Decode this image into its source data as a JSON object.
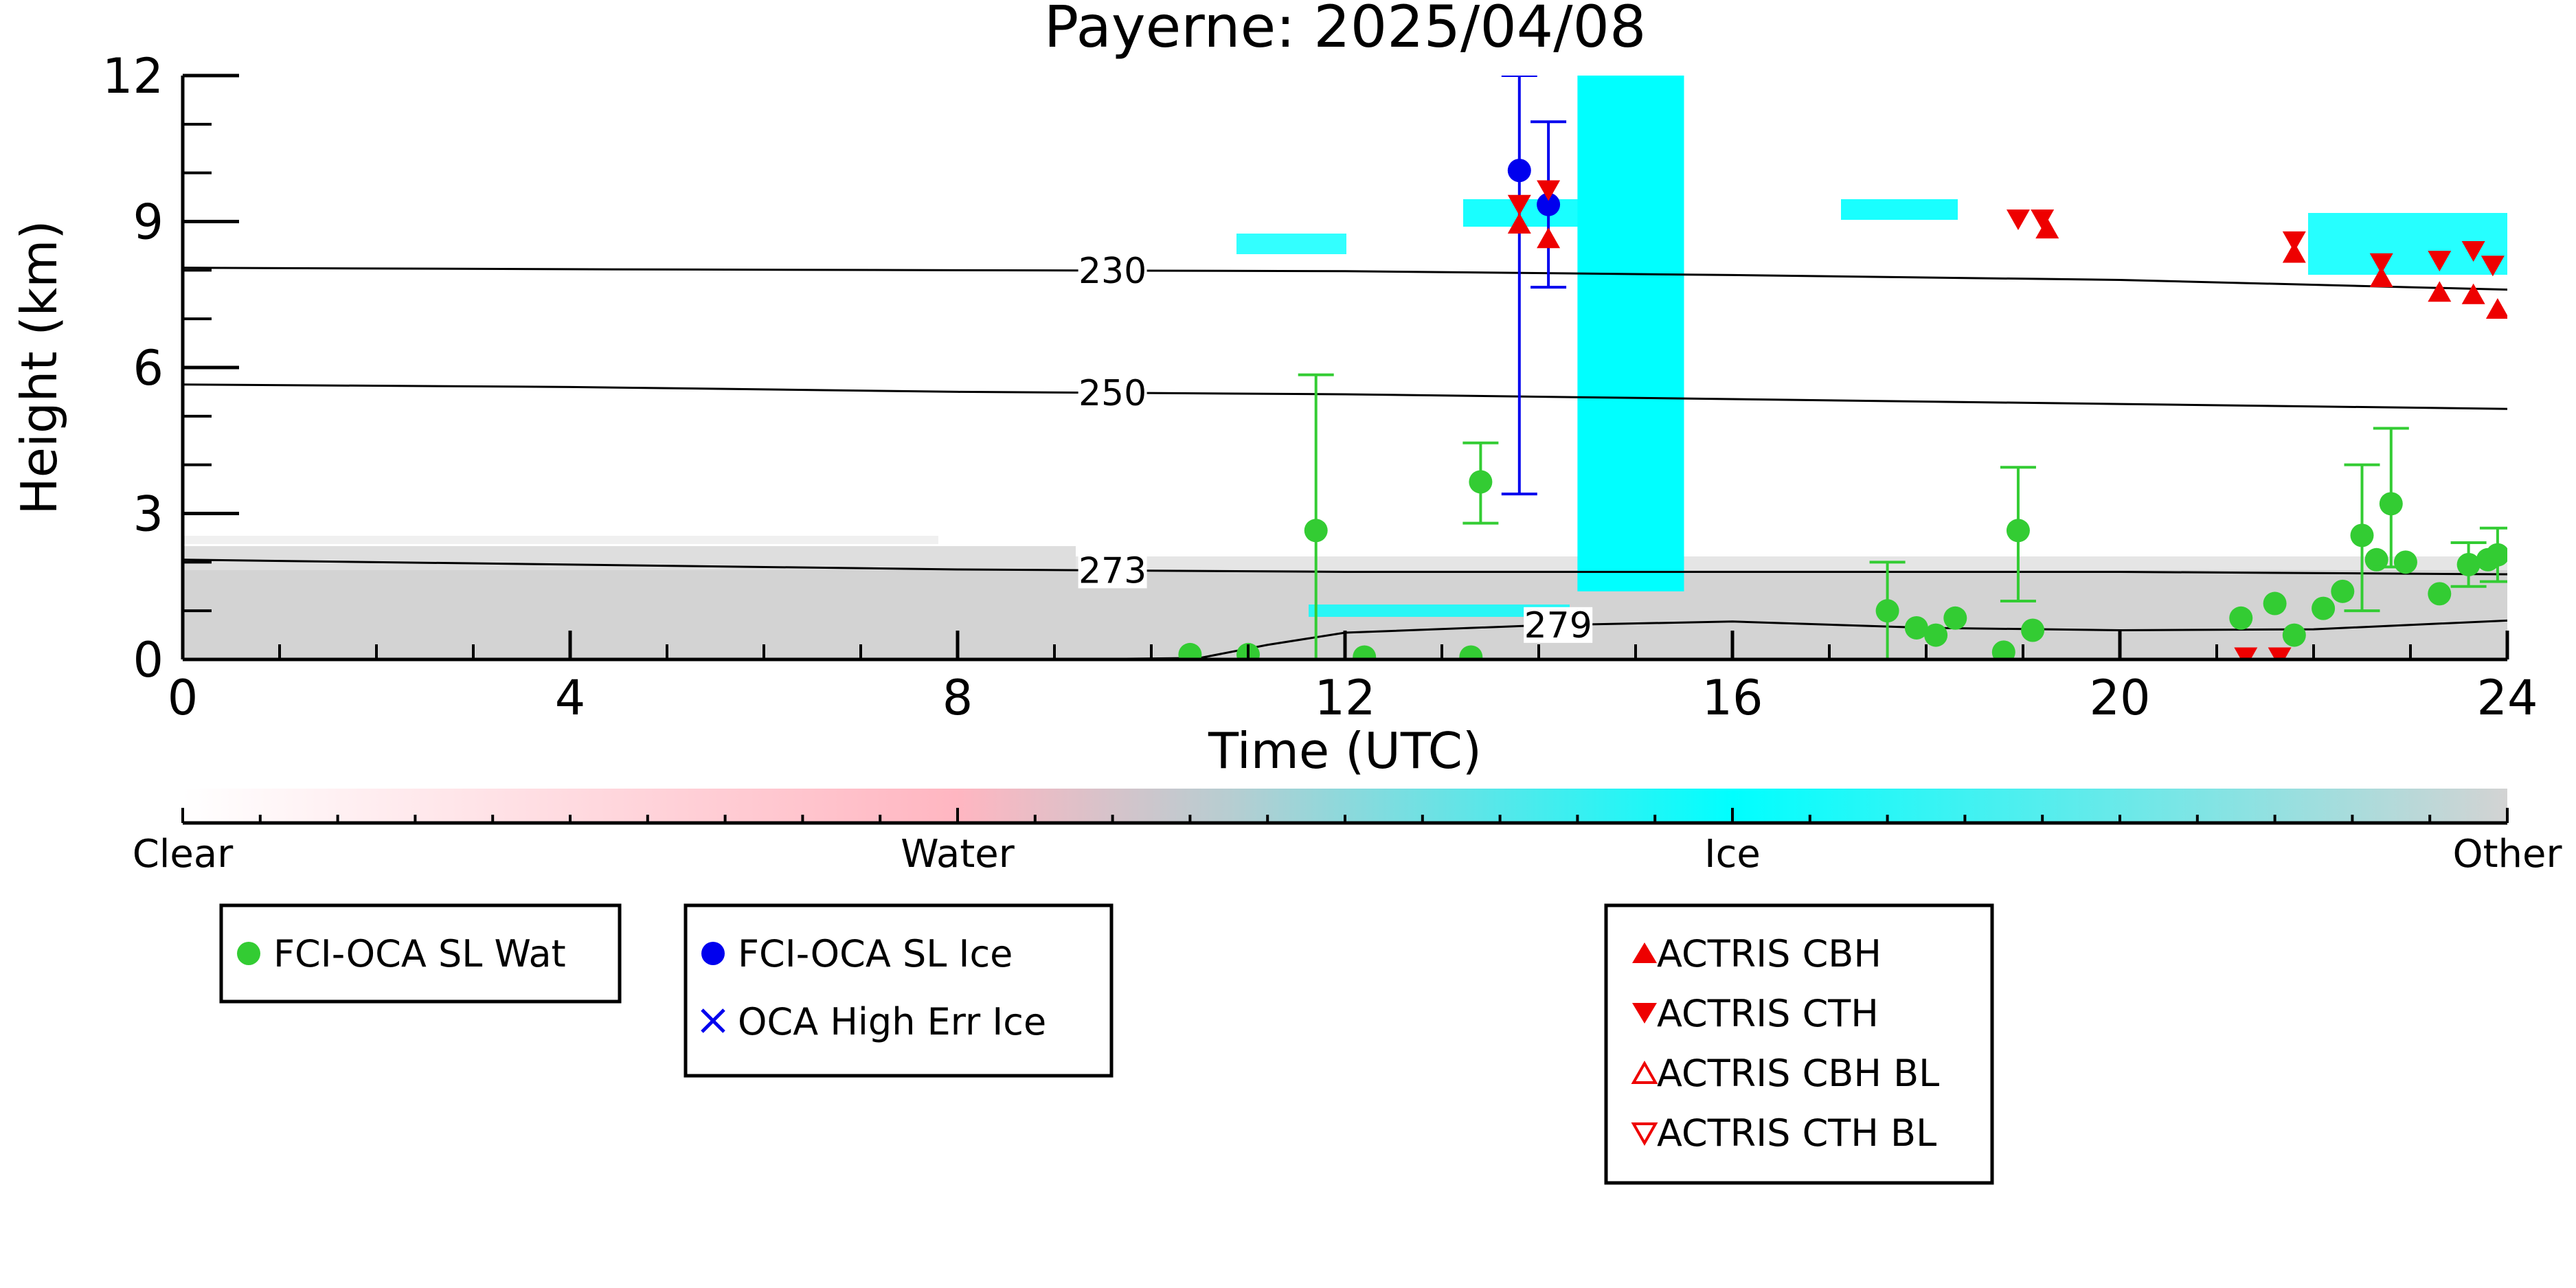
{
  "colors": {
    "water_marker": "#33cc33",
    "ice_marker": "#0000ee",
    "actris": "#ee0000",
    "ice_fill": "#00ffff",
    "other_fill": "#d3d3d3",
    "water_fill": "#ffb6c1"
  },
  "chart_data": {
    "type": "scatter",
    "title": "Payerne: 2025/04/08",
    "xlabel": "Time (UTC)",
    "ylabel": "Height (km)",
    "xlim": [
      0,
      24
    ],
    "ylim": [
      0,
      12
    ],
    "xticks": [
      0,
      4,
      8,
      12,
      16,
      20,
      24
    ],
    "yticks": [
      0,
      3,
      6,
      9,
      12
    ],
    "grid": false,
    "colorbar": {
      "labels": [
        "Clear",
        "Water",
        "Ice",
        "Other"
      ],
      "positions": [
        0,
        0.333,
        0.667,
        1
      ]
    },
    "isotherms": [
      {
        "label": "230",
        "label_x": 9.6,
        "x": [
          0,
          4,
          8,
          12,
          16,
          20,
          24
        ],
        "y": [
          8.05,
          8.02,
          8.0,
          7.98,
          7.9,
          7.8,
          7.6
        ]
      },
      {
        "label": "250",
        "label_x": 9.6,
        "x": [
          0,
          4,
          8,
          12,
          16,
          20,
          24
        ],
        "y": [
          5.65,
          5.6,
          5.5,
          5.45,
          5.35,
          5.25,
          5.15
        ]
      },
      {
        "label": "273",
        "label_x": 9.6,
        "x": [
          0,
          4,
          8,
          12,
          16,
          20,
          24
        ],
        "y": [
          2.05,
          1.95,
          1.85,
          1.8,
          1.8,
          1.8,
          1.75
        ]
      },
      {
        "label": "279",
        "label_x": 14.2,
        "x": [
          9.0,
          10.5,
          11.2,
          12.0,
          14.0,
          16.0,
          18.0,
          20.0,
          22.0,
          24.0
        ],
        "y": [
          0.0,
          0.03,
          0.3,
          0.55,
          0.7,
          0.78,
          0.65,
          0.6,
          0.62,
          0.8
        ]
      }
    ],
    "ice_band": {
      "x0": 14.4,
      "x1": 15.5,
      "y0": 1.4,
      "y1": 12
    },
    "series": [
      {
        "name": "FCI-OCA SL Wat",
        "marker": "circle",
        "points": [
          {
            "x": 11.7,
            "y": 2.65,
            "lo": 0,
            "hi": 5.85
          },
          {
            "x": 13.4,
            "y": 3.65,
            "lo": 2.8,
            "hi": 4.45
          },
          {
            "x": 10.4,
            "y": 0.1
          },
          {
            "x": 11.0,
            "y": 0.1
          },
          {
            "x": 12.2,
            "y": 0.05
          },
          {
            "x": 13.3,
            "y": 0.05
          },
          {
            "x": 17.6,
            "y": 1.0,
            "lo": 0,
            "hi": 2.0
          },
          {
            "x": 17.9,
            "y": 0.65
          },
          {
            "x": 18.1,
            "y": 0.5
          },
          {
            "x": 18.3,
            "y": 0.85
          },
          {
            "x": 18.8,
            "y": 0.15
          },
          {
            "x": 18.95,
            "y": 2.65,
            "lo": 1.2,
            "hi": 3.95
          },
          {
            "x": 19.1,
            "y": 0.6
          },
          {
            "x": 21.25,
            "y": 0.85
          },
          {
            "x": 21.6,
            "y": 1.15
          },
          {
            "x": 21.8,
            "y": 0.5
          },
          {
            "x": 22.1,
            "y": 1.05
          },
          {
            "x": 22.3,
            "y": 1.4
          },
          {
            "x": 22.5,
            "y": 2.55,
            "lo": 1.0,
            "hi": 4.0
          },
          {
            "x": 22.65,
            "y": 2.05
          },
          {
            "x": 22.8,
            "y": 3.2,
            "lo": 1.9,
            "hi": 4.75
          },
          {
            "x": 22.95,
            "y": 2.0
          },
          {
            "x": 23.3,
            "y": 1.35
          },
          {
            "x": 23.6,
            "y": 1.95,
            "lo": 1.5,
            "hi": 2.4
          },
          {
            "x": 23.8,
            "y": 2.05
          },
          {
            "x": 23.9,
            "y": 2.15,
            "lo": 1.6,
            "hi": 2.7
          }
        ]
      },
      {
        "name": "FCI-OCA SL Ice",
        "marker": "circle",
        "points": [
          {
            "x": 13.8,
            "y": 10.05,
            "lo": 3.4,
            "hi": 12.0
          },
          {
            "x": 14.1,
            "y": 9.35,
            "lo": 7.65,
            "hi": 11.05
          }
        ]
      },
      {
        "name": "OCA High Err Ice",
        "marker": "x",
        "points": []
      },
      {
        "name": "ACTRIS CBH",
        "marker": "triangle-up",
        "points": [
          {
            "x": 13.8,
            "y": 8.95
          },
          {
            "x": 14.1,
            "y": 8.65
          },
          {
            "x": 19.25,
            "y": 8.85
          },
          {
            "x": 21.8,
            "y": 8.35
          },
          {
            "x": 22.7,
            "y": 7.85
          },
          {
            "x": 23.3,
            "y": 7.55
          },
          {
            "x": 23.65,
            "y": 7.5
          },
          {
            "x": 23.9,
            "y": 7.2
          }
        ]
      },
      {
        "name": "ACTRIS CTH",
        "marker": "triangle-down",
        "points": [
          {
            "x": 13.8,
            "y": 9.35
          },
          {
            "x": 14.1,
            "y": 9.65
          },
          {
            "x": 18.95,
            "y": 9.05
          },
          {
            "x": 19.2,
            "y": 9.05
          },
          {
            "x": 21.8,
            "y": 8.6
          },
          {
            "x": 22.7,
            "y": 8.15
          },
          {
            "x": 23.3,
            "y": 8.2
          },
          {
            "x": 23.65,
            "y": 8.4
          },
          {
            "x": 23.85,
            "y": 8.1
          },
          {
            "x": 21.3,
            "y": 0.05
          },
          {
            "x": 21.65,
            "y": 0.05
          }
        ]
      },
      {
        "name": "ACTRIS CBH BL",
        "marker": "triangle-up-open",
        "points": []
      },
      {
        "name": "ACTRIS CTH BL",
        "marker": "triangle-down-open",
        "points": []
      }
    ],
    "legends": [
      {
        "entries": [
          "FCI-OCA SL Wat"
        ]
      },
      {
        "entries": [
          "FCI-OCA SL Ice",
          "OCA High Err Ice"
        ]
      },
      {
        "entries": [
          "ACTRIS CBH",
          "ACTRIS CTH",
          "ACTRIS CBH BL",
          "ACTRIS CTH BL"
        ]
      }
    ]
  }
}
